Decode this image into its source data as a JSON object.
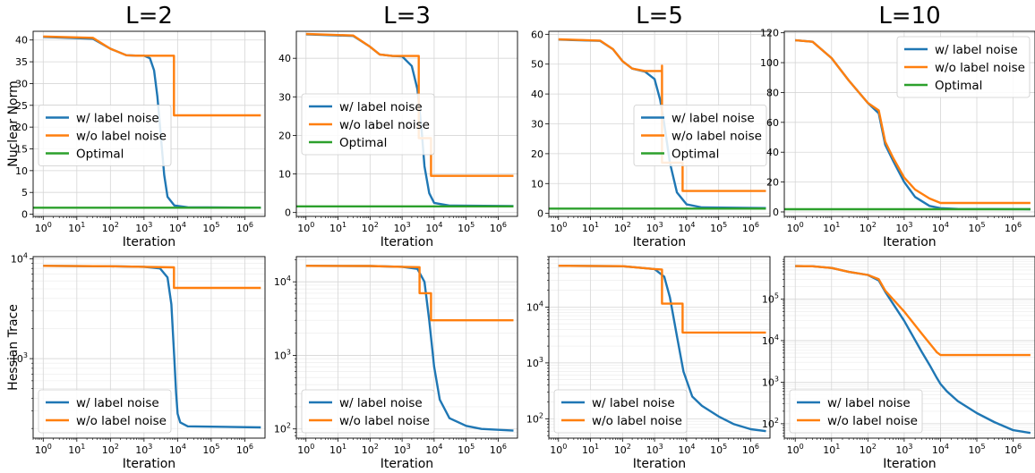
{
  "colors": {
    "with_noise": "#1f77b4",
    "without_noise": "#ff7f0e",
    "optimal": "#2ca02c"
  },
  "columns": [
    "L=2",
    "L=3",
    "L=5",
    "L=10"
  ],
  "row_ylabels": [
    "Nuclear Norm",
    "Hessian Trace"
  ],
  "chart_data": [
    {
      "type": "line",
      "row": 0,
      "col": 0,
      "xscale": "log",
      "xlim": [
        0.5,
        4000000
      ],
      "ylim": [
        -0.5,
        42
      ],
      "xlabel": "Iteration",
      "ylabel": "Nuclear Norm",
      "grid": true,
      "legend": "center-left",
      "x_ticks": [
        "10^0",
        "10^1",
        "10^2",
        "10^3",
        "10^4",
        "10^5",
        "10^6"
      ],
      "y_ticks": [
        "0",
        "5",
        "10",
        "15",
        "20",
        "25",
        "30",
        "35",
        "40"
      ],
      "series": [
        {
          "name": "w/  label noise",
          "x": [
            1,
            30,
            100,
            300,
            700,
            1000,
            1500,
            2000,
            2500,
            3000,
            4000,
            5000,
            8000,
            20000,
            3000000
          ],
          "y": [
            40.7,
            40.3,
            38,
            36.5,
            36.4,
            36.4,
            35.8,
            33,
            27,
            20,
            9,
            4,
            2,
            1.6,
            1.5
          ]
        },
        {
          "name": "w/o label noise",
          "x": [
            1,
            30,
            100,
            300,
            700,
            1000,
            3000,
            7800,
            7801,
            3000000
          ],
          "y": [
            40.8,
            40.5,
            38,
            36.5,
            36.4,
            36.4,
            36.4,
            36.4,
            22.7,
            22.7
          ]
        },
        {
          "name": "Optimal",
          "x": [
            0.5,
            3000000
          ],
          "y": [
            1.5,
            1.5
          ]
        }
      ]
    },
    {
      "type": "line",
      "row": 0,
      "col": 1,
      "xscale": "log",
      "xlim": [
        0.5,
        4000000
      ],
      "ylim": [
        -1,
        47
      ],
      "xlabel": "Iteration",
      "ylabel": "",
      "grid": true,
      "legend": "upper-left",
      "x_ticks": [
        "10^0",
        "10^1",
        "10^2",
        "10^3",
        "10^4",
        "10^5",
        "10^6"
      ],
      "y_ticks": [
        "0",
        "10",
        "20",
        "30",
        "40"
      ],
      "series": [
        {
          "name": "w/  label noise",
          "x": [
            1,
            30,
            100,
            200,
            500,
            1000,
            2000,
            3000,
            4000,
            5000,
            7000,
            10000,
            30000,
            3000000
          ],
          "y": [
            46.2,
            45.8,
            43,
            41,
            40.6,
            40.5,
            38,
            32,
            22,
            12,
            5,
            2.5,
            1.8,
            1.7
          ]
        },
        {
          "name": "w/o label noise",
          "x": [
            1,
            30,
            100,
            200,
            500,
            1000,
            2000,
            3300,
            3301,
            8000,
            8001,
            3000000
          ],
          "y": [
            46.3,
            45.9,
            43,
            41,
            40.6,
            40.6,
            40.6,
            40.6,
            19.3,
            19.3,
            9.5,
            9.5
          ]
        },
        {
          "name": "Optimal",
          "x": [
            0.5,
            3000000
          ],
          "y": [
            1.6,
            1.6
          ]
        }
      ]
    },
    {
      "type": "line",
      "row": 0,
      "col": 2,
      "xscale": "log",
      "xlim": [
        0.5,
        4000000
      ],
      "ylim": [
        -1,
        61
      ],
      "xlabel": "Iteration",
      "ylabel": "",
      "grid": true,
      "legend": "center-right",
      "x_ticks": [
        "10^0",
        "10^1",
        "10^2",
        "10^3",
        "10^4",
        "10^5",
        "10^6"
      ],
      "y_ticks": [
        "0",
        "10",
        "20",
        "30",
        "40",
        "50",
        "60"
      ],
      "series": [
        {
          "name": "w/  label noise",
          "x": [
            1,
            20,
            50,
            100,
            200,
            500,
            1000,
            1500,
            2000,
            3000,
            5000,
            10000,
            30000,
            3000000
          ],
          "y": [
            58.2,
            57.8,
            55,
            51,
            48.5,
            47.5,
            45,
            38,
            30,
            17,
            7,
            3,
            2,
            1.8
          ]
        },
        {
          "name": "w/o label noise",
          "x": [
            1,
            20,
            50,
            100,
            200,
            500,
            1000,
            1700,
            1701,
            1702,
            1703,
            7500,
            7501,
            3000000
          ],
          "y": [
            58.3,
            57.9,
            55,
            51,
            48.5,
            47.7,
            47.7,
            47.7,
            49.5,
            17,
            17,
            17,
            7.5,
            7.5
          ]
        },
        {
          "name": "Optimal",
          "x": [
            0.5,
            3000000
          ],
          "y": [
            1.6,
            1.6
          ]
        }
      ]
    },
    {
      "type": "line",
      "row": 0,
      "col": 3,
      "xscale": "log",
      "xlim": [
        0.5,
        4000000
      ],
      "ylim": [
        -3,
        121
      ],
      "xlabel": "Iteration",
      "ylabel": "",
      "grid": true,
      "legend": "upper-right",
      "x_ticks": [
        "10^0",
        "10^1",
        "10^2",
        "10^3",
        "10^4",
        "10^5",
        "10^6"
      ],
      "y_ticks": [
        "0",
        "20",
        "40",
        "60",
        "80",
        "100",
        "120"
      ],
      "series": [
        {
          "name": "w/  label noise",
          "x": [
            1,
            3,
            10,
            30,
            100,
            200,
            300,
            500,
            1000,
            2000,
            5000,
            10000,
            30000,
            3000000
          ],
          "y": [
            115,
            114,
            103,
            88,
            73,
            66,
            45,
            34,
            20,
            10,
            4,
            2.5,
            2,
            1.8
          ]
        },
        {
          "name": "w/o label noise",
          "x": [
            1,
            3,
            10,
            30,
            100,
            200,
            300,
            500,
            1000,
            2000,
            5000,
            10000,
            30000,
            3000000
          ],
          "y": [
            115,
            114,
            103,
            88,
            73,
            68,
            47,
            36,
            23,
            15,
            9,
            6,
            6,
            6
          ]
        },
        {
          "name": "Optimal",
          "x": [
            0.5,
            3000000
          ],
          "y": [
            1.8,
            1.8
          ]
        }
      ]
    },
    {
      "type": "line",
      "row": 1,
      "col": 0,
      "xscale": "log",
      "yscale": "log",
      "xlim": [
        0.5,
        4000000
      ],
      "ylim": [
        160,
        10500
      ],
      "xlabel": "Iteration",
      "ylabel": "Hessian Trace",
      "grid": true,
      "legend": "lower-left",
      "x_ticks": [
        "10^0",
        "10^1",
        "10^2",
        "10^3",
        "10^4",
        "10^5",
        "10^6"
      ],
      "y_ticks": [
        "10^3",
        "10^4"
      ],
      "series": [
        {
          "name": "w/  label noise",
          "x": [
            1,
            100,
            1000,
            3000,
            5000,
            6500,
            8000,
            9000,
            10000,
            12000,
            20000,
            3000000
          ],
          "y": [
            8500,
            8400,
            8300,
            8000,
            6500,
            3500,
            1000,
            450,
            280,
            230,
            210,
            205
          ]
        },
        {
          "name": "w/o label noise",
          "x": [
            1,
            100,
            1000,
            7800,
            7801,
            3000000
          ],
          "y": [
            8500,
            8400,
            8300,
            8200,
            5100,
            5100
          ]
        }
      ]
    },
    {
      "type": "line",
      "row": 1,
      "col": 1,
      "xscale": "log",
      "yscale": "log",
      "xlim": [
        0.5,
        4000000
      ],
      "ylim": [
        75,
        22000
      ],
      "xlabel": "Iteration",
      "ylabel": "",
      "grid": true,
      "legend": "lower-left",
      "x_ticks": [
        "10^0",
        "10^1",
        "10^2",
        "10^3",
        "10^4",
        "10^5",
        "10^6"
      ],
      "y_ticks": [
        "10^2",
        "10^3",
        "10^4"
      ],
      "series": [
        {
          "name": "w/  label noise",
          "x": [
            1,
            100,
            1000,
            3000,
            5000,
            7000,
            10000,
            15000,
            30000,
            100000,
            300000,
            3000000
          ],
          "y": [
            16500,
            16400,
            16000,
            15000,
            10000,
            3000,
            700,
            250,
            140,
            110,
            100,
            95
          ]
        },
        {
          "name": "w/o label noise",
          "x": [
            1,
            100,
            1000,
            3500,
            3501,
            8000,
            8001,
            3000000
          ],
          "y": [
            16500,
            16400,
            16000,
            15800,
            7000,
            7000,
            3000,
            3000
          ]
        }
      ]
    },
    {
      "type": "line",
      "row": 1,
      "col": 2,
      "xscale": "log",
      "yscale": "log",
      "xlim": [
        0.5,
        4000000
      ],
      "ylim": [
        45,
        80000
      ],
      "xlabel": "Iteration",
      "ylabel": "",
      "grid": true,
      "legend": "lower-left",
      "x_ticks": [
        "10^0",
        "10^1",
        "10^2",
        "10^3",
        "10^4",
        "10^5",
        "10^6"
      ],
      "y_ticks": [
        "10^2",
        "10^3",
        "10^4"
      ],
      "series": [
        {
          "name": "w/  label noise",
          "x": [
            1,
            100,
            1000,
            2000,
            3000,
            5000,
            8000,
            15000,
            30000,
            100000,
            300000,
            1000000,
            3000000
          ],
          "y": [
            55000,
            54000,
            48000,
            35000,
            15000,
            3000,
            700,
            250,
            170,
            110,
            80,
            65,
            60
          ]
        },
        {
          "name": "w/o label noise",
          "x": [
            1,
            100,
            1000,
            1700,
            1701,
            7500,
            7501,
            3000000
          ],
          "y": [
            55000,
            54000,
            48000,
            47000,
            11500,
            11500,
            3500,
            3500
          ]
        }
      ]
    },
    {
      "type": "line",
      "row": 1,
      "col": 3,
      "xscale": "log",
      "yscale": "log",
      "xlim": [
        0.5,
        4000000
      ],
      "ylim": [
        45,
        1050000
      ],
      "xlabel": "Iteration",
      "ylabel": "",
      "grid": true,
      "legend": "lower-left",
      "x_ticks": [
        "10^0",
        "10^1",
        "10^2",
        "10^3",
        "10^4",
        "10^5",
        "10^6"
      ],
      "y_ticks": [
        "10^2",
        "10^3",
        "10^4",
        "10^5"
      ],
      "series": [
        {
          "name": "w/  label noise",
          "x": [
            1,
            3,
            10,
            30,
            100,
            200,
            300,
            1000,
            3000,
            5000,
            8000,
            10000,
            15000,
            30000,
            100000,
            300000,
            1000000,
            3000000
          ],
          "y": [
            620000,
            615000,
            560000,
            450000,
            380000,
            280000,
            150000,
            30000,
            5500,
            2600,
            1250,
            900,
            600,
            350,
            180,
            110,
            70,
            60
          ]
        },
        {
          "name": "w/o label noise",
          "x": [
            1,
            3,
            10,
            30,
            100,
            200,
            300,
            1000,
            3000,
            8000,
            10000,
            3000000
          ],
          "y": [
            620000,
            615000,
            560000,
            450000,
            380000,
            300000,
            160000,
            50000,
            15000,
            5200,
            4500,
            4500
          ]
        }
      ]
    }
  ]
}
